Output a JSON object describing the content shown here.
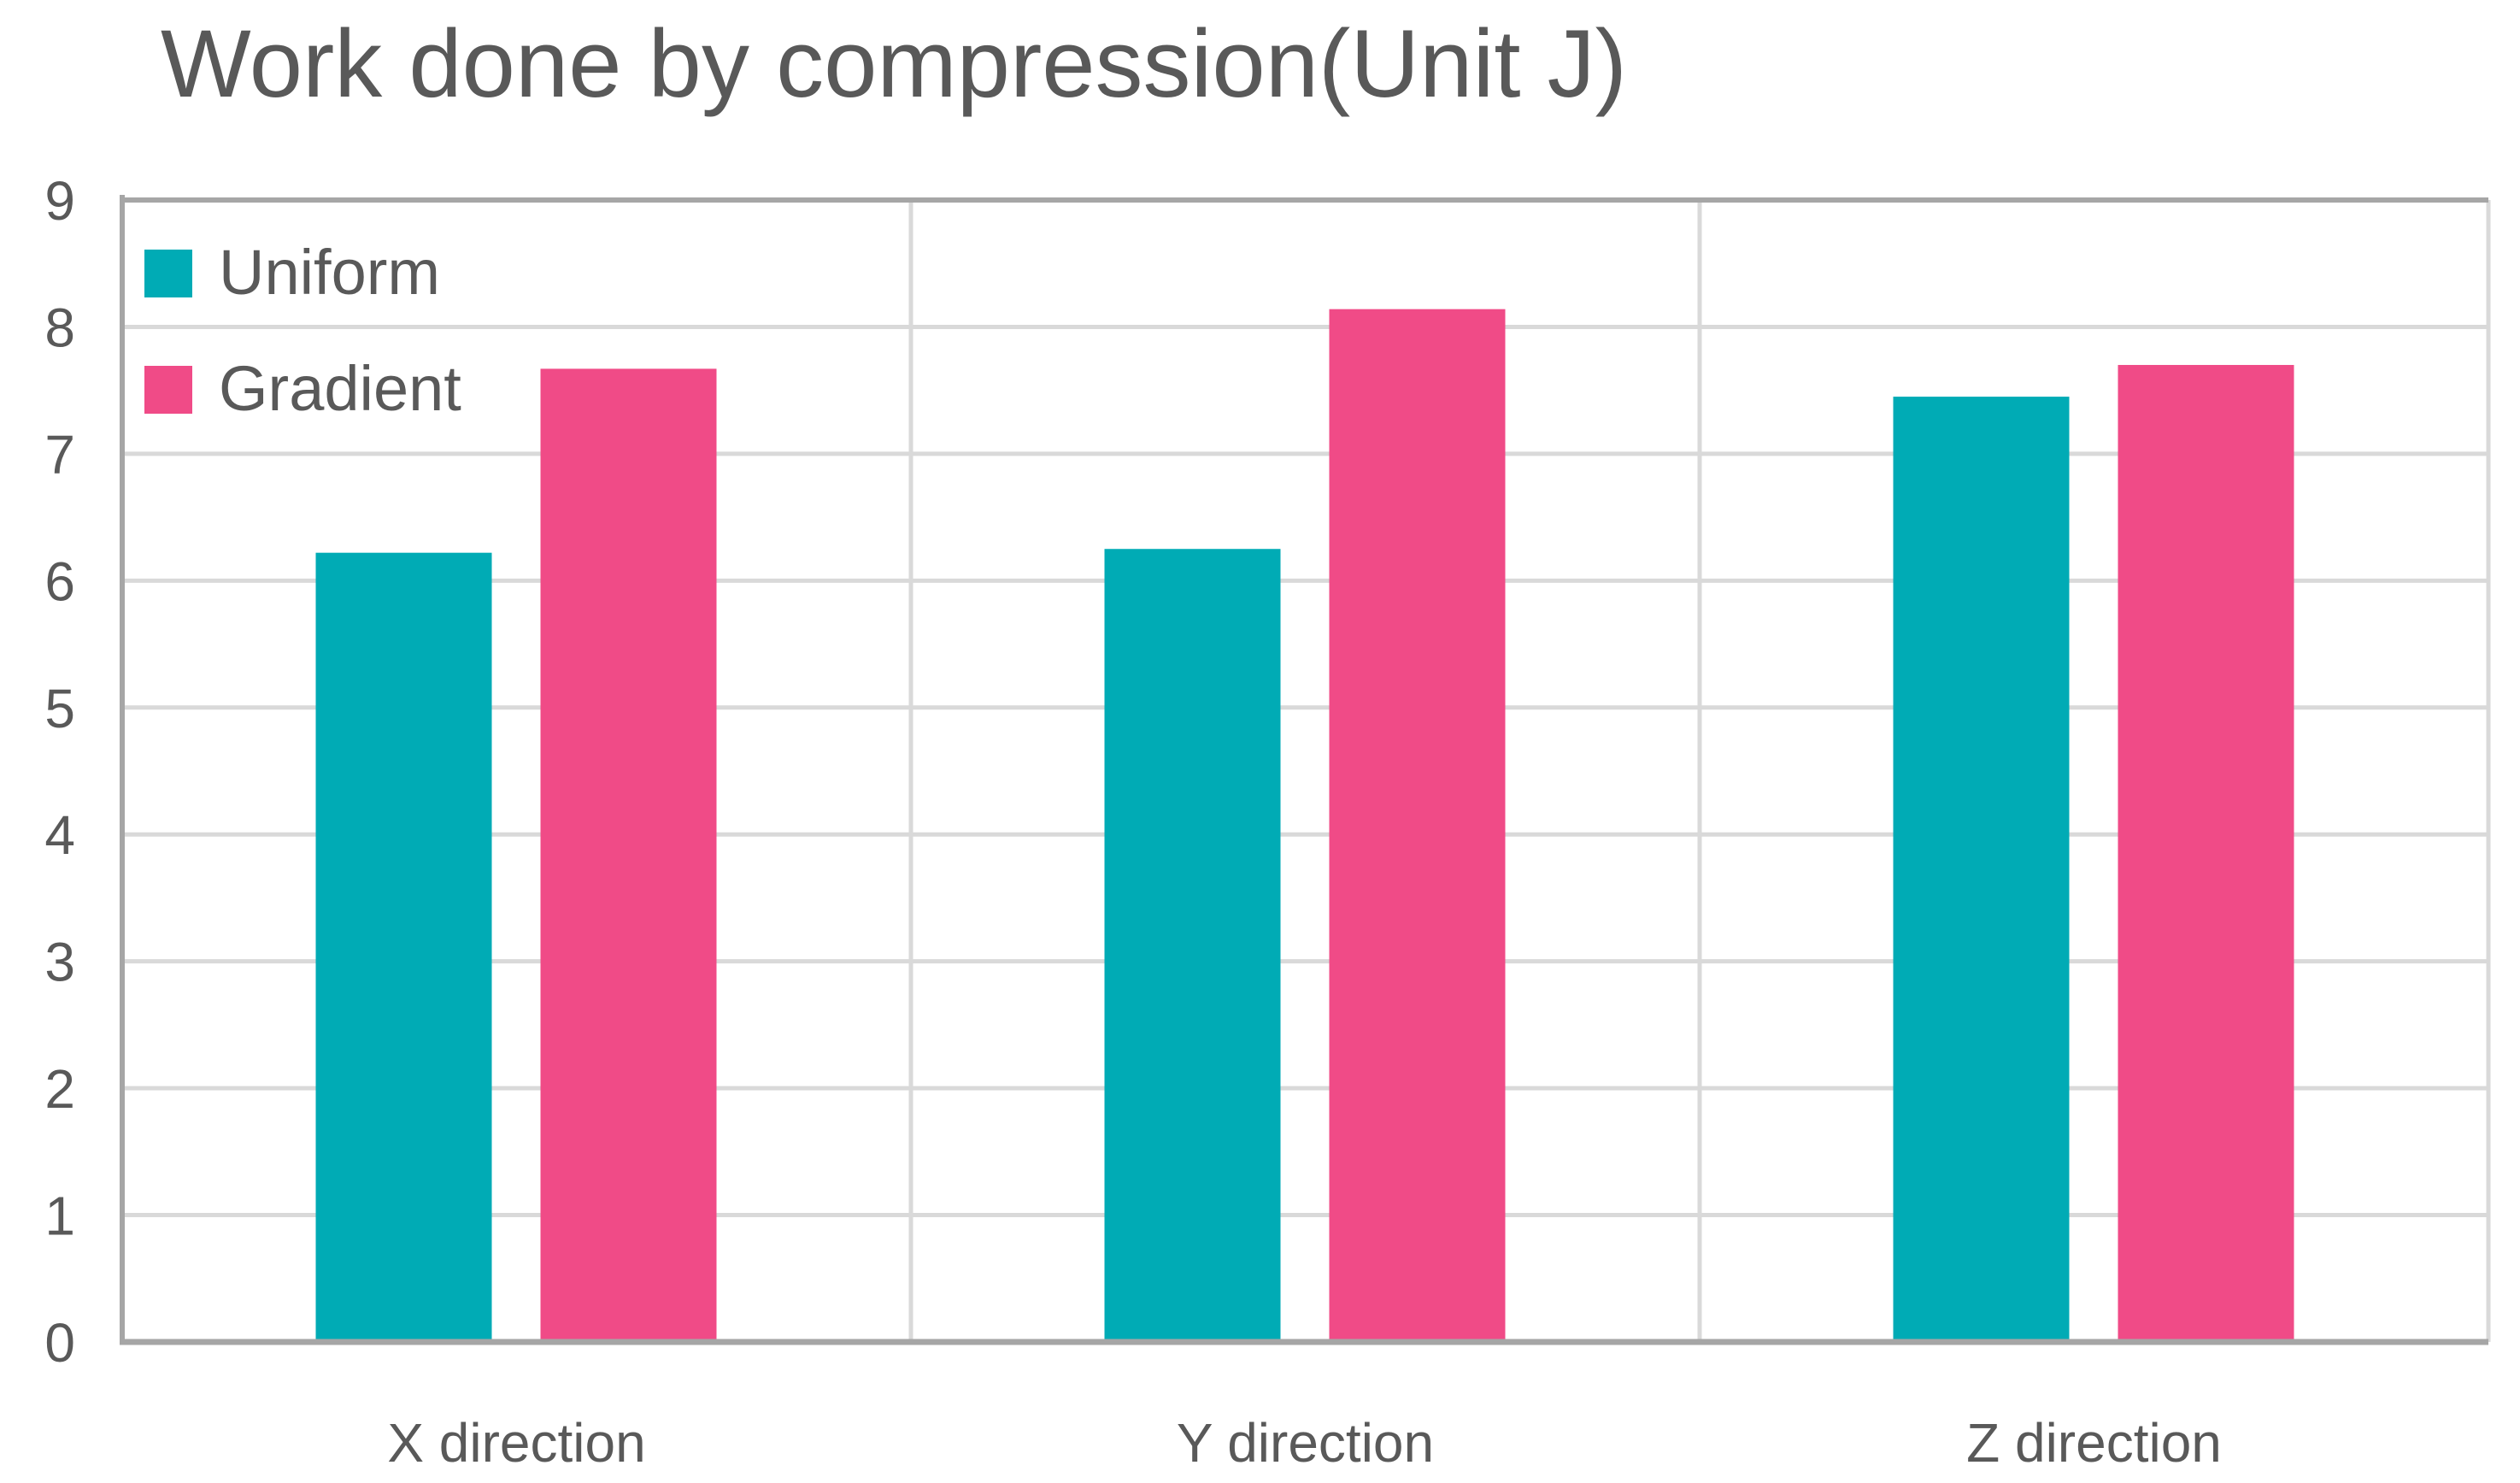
{
  "chart_data": {
    "type": "bar",
    "title": "Work done by compression(Unit J)",
    "categories": [
      "X direction",
      "Y direction",
      "Z direction"
    ],
    "series": [
      {
        "name": "Uniform",
        "values": [
          6.22,
          6.25,
          7.45
        ],
        "color": "#00ABB5"
      },
      {
        "name": "Gradient",
        "values": [
          7.67,
          8.14,
          7.7
        ],
        "color": "#F04B87"
      }
    ],
    "ylim": [
      0,
      9
    ],
    "yticks": [
      0,
      1,
      2,
      3,
      4,
      5,
      6,
      7,
      8,
      9
    ],
    "grid": true,
    "legend": "top-left",
    "colors": {
      "grid": "#D9D9D9",
      "axis": "#A6A6A6",
      "text": "#595959"
    }
  }
}
